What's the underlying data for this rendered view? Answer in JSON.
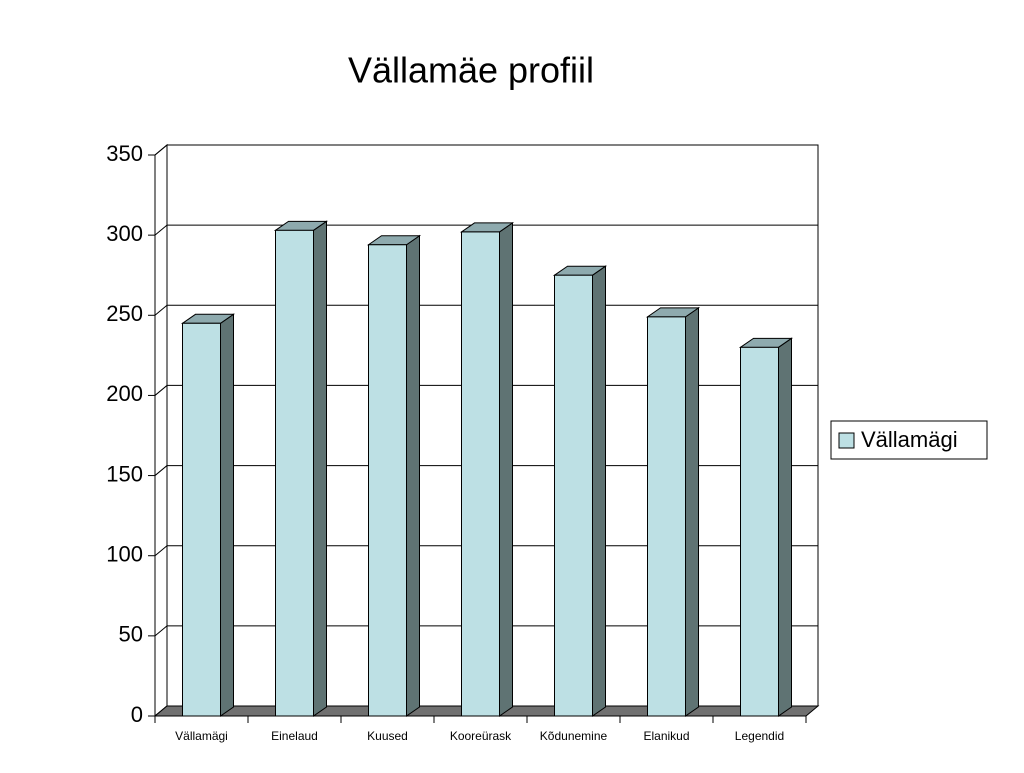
{
  "chart_data": {
    "type": "bar3d",
    "title": "Vällamäe profiil",
    "categories": [
      "Vällamägi",
      "Einelaud",
      "Kuused",
      "Kooreürask",
      "Kõdunemine",
      "Elanikud",
      "Legendid"
    ],
    "series": [
      {
        "name": "Vällamägi",
        "color": "#bde0e4",
        "values": [
          245,
          303,
          294,
          302,
          275,
          249,
          230
        ]
      }
    ],
    "ylim": [
      0,
      350
    ],
    "yticks": [
      0,
      50,
      100,
      150,
      200,
      250,
      300,
      350
    ],
    "grid": true,
    "legend": "right"
  }
}
